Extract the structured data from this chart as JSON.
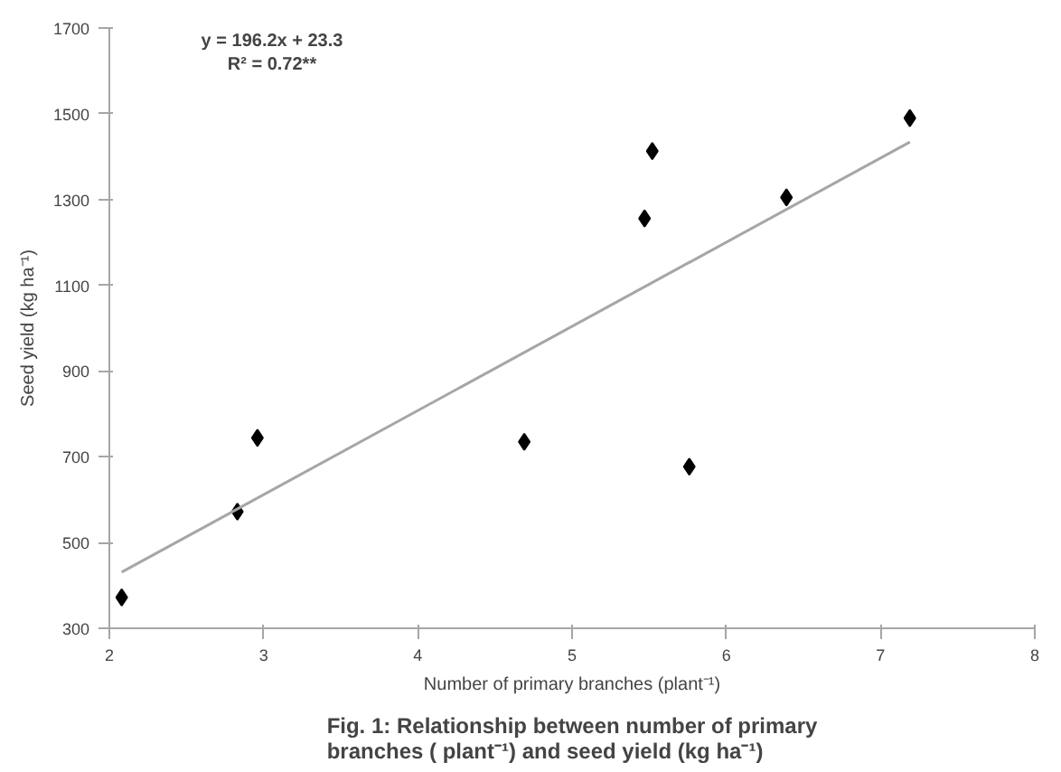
{
  "chart_data": {
    "type": "scatter",
    "xlabel": "Number of primary branches (plant⁻¹)",
    "ylabel": "Seed yield (kg ha⁻¹)",
    "x": [
      2.08,
      2.83,
      2.96,
      4.69,
      5.47,
      5.52,
      5.76,
      6.39,
      7.19
    ],
    "series": [
      {
        "color": "#000000",
        "marker": "diamond",
        "values": [
          372,
          572,
          744,
          735,
          1256,
          1413,
          677,
          1305,
          1490
        ]
      },
      {
        "type": "line",
        "color": "#a6a6a6",
        "marker": "none",
        "x": [
          2.08,
          7.19
        ],
        "values": [
          431,
          1434
        ]
      }
    ],
    "xlim": [
      2,
      8
    ],
    "ylim": [
      300,
      1700
    ],
    "xticks": [
      2,
      3,
      4,
      5,
      6,
      7,
      8
    ],
    "yticks": [
      300,
      500,
      700,
      900,
      1100,
      1300,
      1500,
      1700
    ],
    "grid": false,
    "annotations": [
      "y = 196.2x + 23.3\nR² = 0.72**",
      "Fig. 1: Relationship between number of primary\nbranches ( plant⁻¹) and seed yield (kg ha⁻¹)"
    ]
  }
}
